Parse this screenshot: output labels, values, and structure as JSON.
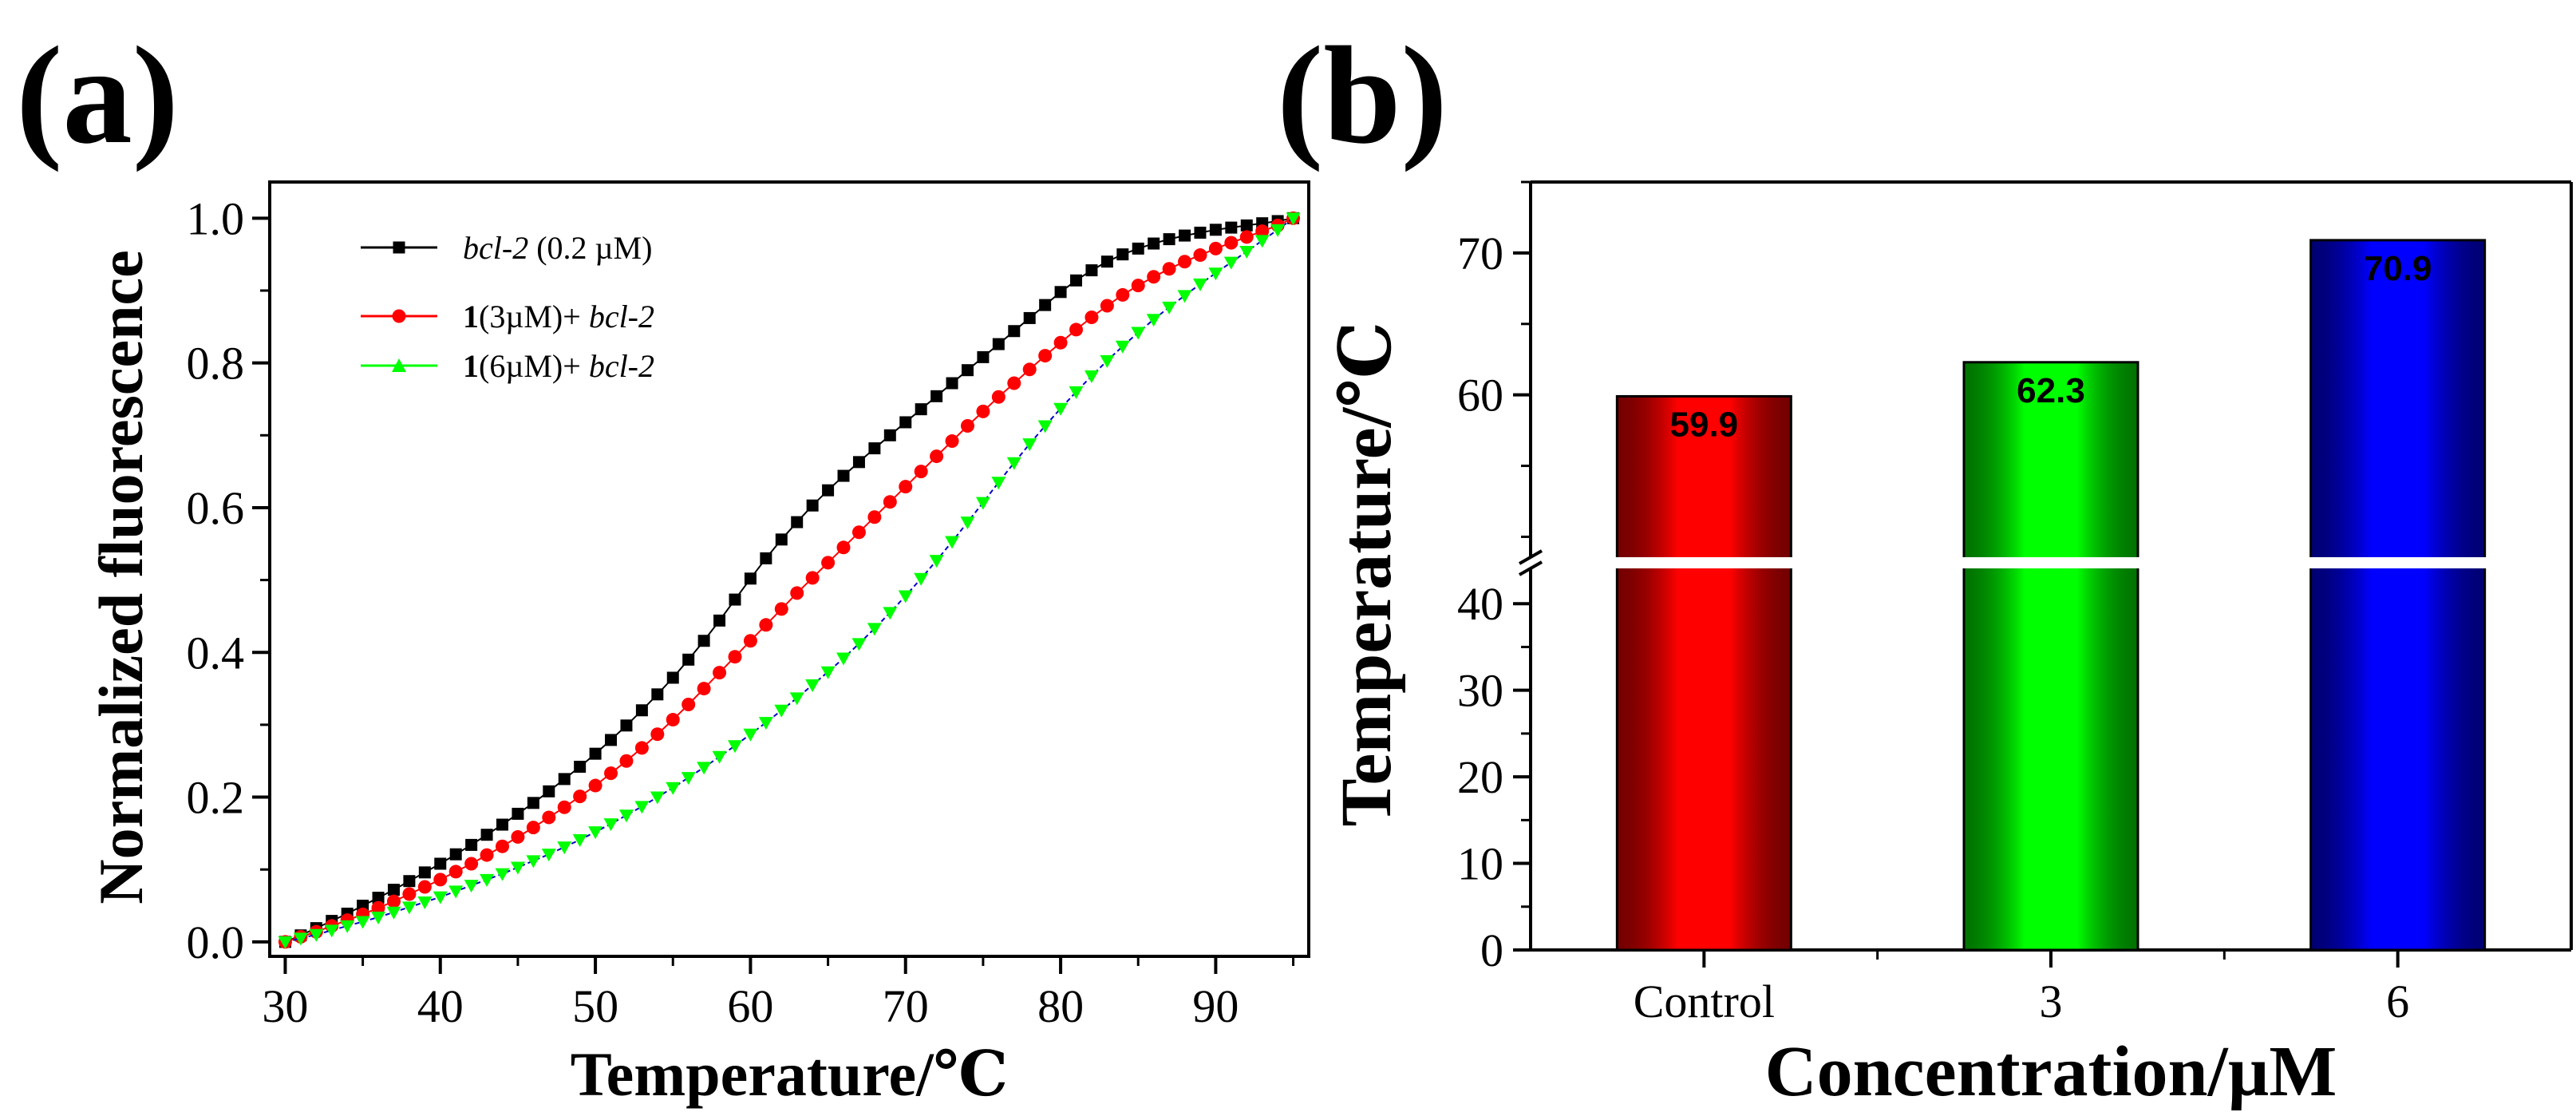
{
  "panels": {
    "a": {
      "label": "(a)"
    },
    "b": {
      "label": "(b)"
    }
  },
  "chart_data": [
    {
      "id": "a",
      "type": "line",
      "xlabel": "Temperature/℃",
      "ylabel": "Normalized fluorescence",
      "xlim": [
        29,
        96
      ],
      "ylim": [
        -0.02,
        1.05
      ],
      "xticks": [
        30,
        40,
        50,
        60,
        70,
        80,
        90
      ],
      "yticks": [
        0.0,
        0.2,
        0.4,
        0.6,
        0.8,
        1.0
      ],
      "x": [
        30,
        31,
        32,
        33,
        34,
        35,
        36,
        37,
        38,
        39,
        40,
        41,
        42,
        43,
        44,
        45,
        46,
        47,
        48,
        49,
        50,
        51,
        52,
        53,
        54,
        55,
        56,
        57,
        58,
        59,
        60,
        61,
        62,
        63,
        64,
        65,
        66,
        67,
        68,
        69,
        70,
        71,
        72,
        73,
        74,
        75,
        76,
        77,
        78,
        79,
        80,
        81,
        82,
        83,
        84,
        85,
        86,
        87,
        88,
        89,
        90,
        91,
        92,
        93,
        94,
        95
      ],
      "series": [
        {
          "name": "bcl-2 (0.2 µM)",
          "legend": {
            "bold": "",
            "italic_pre": "bcl-2",
            "plain": " (0.2 µM)",
            "italic_post": ""
          },
          "color": "#000000",
          "marker": "square",
          "values": [
            0.0,
            0.009,
            0.019,
            0.029,
            0.039,
            0.05,
            0.061,
            0.072,
            0.084,
            0.096,
            0.108,
            0.121,
            0.134,
            0.148,
            0.162,
            0.177,
            0.192,
            0.208,
            0.225,
            0.242,
            0.26,
            0.279,
            0.299,
            0.32,
            0.342,
            0.365,
            0.39,
            0.416,
            0.444,
            0.473,
            0.502,
            0.53,
            0.556,
            0.58,
            0.603,
            0.624,
            0.644,
            0.663,
            0.682,
            0.7,
            0.718,
            0.736,
            0.754,
            0.772,
            0.79,
            0.808,
            0.826,
            0.844,
            0.862,
            0.88,
            0.898,
            0.914,
            0.928,
            0.94,
            0.95,
            0.958,
            0.965,
            0.971,
            0.976,
            0.98,
            0.984,
            0.987,
            0.99,
            0.993,
            0.996,
            1.0
          ]
        },
        {
          "name": "1(3µM)+ bcl-2",
          "legend": {
            "bold": "1",
            "italic_pre": "",
            "plain": "(3µM)+ ",
            "italic_post": "bcl-2"
          },
          "color": "#ff0000",
          "marker": "circle",
          "values": [
            0.0,
            0.007,
            0.014,
            0.022,
            0.03,
            0.038,
            0.047,
            0.056,
            0.066,
            0.076,
            0.086,
            0.097,
            0.108,
            0.12,
            0.132,
            0.145,
            0.158,
            0.172,
            0.186,
            0.201,
            0.216,
            0.233,
            0.25,
            0.268,
            0.287,
            0.307,
            0.328,
            0.35,
            0.372,
            0.394,
            0.416,
            0.438,
            0.46,
            0.482,
            0.503,
            0.524,
            0.545,
            0.566,
            0.587,
            0.608,
            0.629,
            0.65,
            0.671,
            0.692,
            0.713,
            0.733,
            0.753,
            0.772,
            0.791,
            0.81,
            0.828,
            0.846,
            0.863,
            0.879,
            0.894,
            0.907,
            0.919,
            0.93,
            0.94,
            0.949,
            0.958,
            0.966,
            0.974,
            0.982,
            0.99,
            1.0
          ]
        },
        {
          "name": "1(6µM)+ bcl-2",
          "legend": {
            "bold": "1",
            "italic_pre": "",
            "plain": "(6µM)+ ",
            "italic_post": "bcl-2"
          },
          "color": "#00ff00",
          "marker": "triangle",
          "values": [
            0.0,
            0.005,
            0.01,
            0.016,
            0.022,
            0.028,
            0.034,
            0.041,
            0.048,
            0.055,
            0.062,
            0.07,
            0.078,
            0.086,
            0.094,
            0.103,
            0.112,
            0.121,
            0.131,
            0.141,
            0.152,
            0.163,
            0.175,
            0.187,
            0.2,
            0.213,
            0.227,
            0.241,
            0.256,
            0.271,
            0.287,
            0.303,
            0.32,
            0.337,
            0.355,
            0.373,
            0.392,
            0.412,
            0.433,
            0.455,
            0.478,
            0.502,
            0.527,
            0.553,
            0.58,
            0.607,
            0.635,
            0.662,
            0.688,
            0.713,
            0.737,
            0.76,
            0.782,
            0.803,
            0.823,
            0.842,
            0.86,
            0.877,
            0.893,
            0.909,
            0.924,
            0.939,
            0.954,
            0.969,
            0.984,
            1.0
          ]
        }
      ]
    },
    {
      "id": "b",
      "type": "bar",
      "xlabel": "Concentration/µM",
      "ylabel": "Temperature/℃",
      "categories": [
        "Control",
        "3",
        "6"
      ],
      "values": [
        59.9,
        62.3,
        70.9
      ],
      "labels": [
        "59.9",
        "62.3",
        "70.9"
      ],
      "lower_ylim": [
        0,
        45
      ],
      "lower_yticks": [
        0,
        10,
        20,
        30,
        40
      ],
      "upper_ylim": [
        48,
        75
      ],
      "upper_yticks": [
        60,
        70
      ],
      "axis_break": true,
      "colors": [
        "#ff0000",
        "#00ff00",
        "#0000ff"
      ]
    }
  ]
}
